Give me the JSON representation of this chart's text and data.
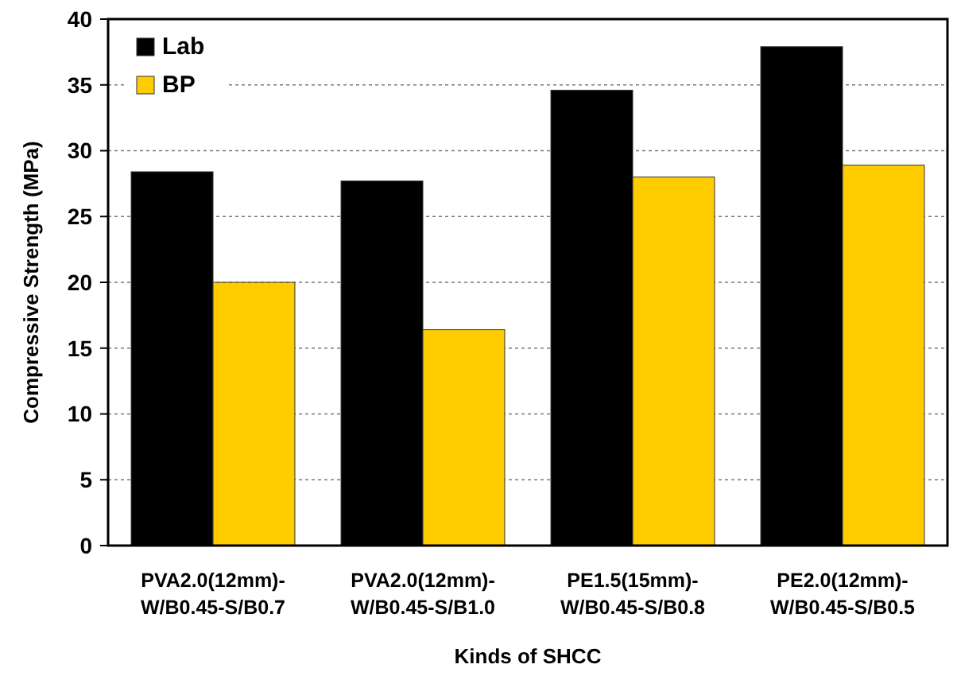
{
  "chart_data": {
    "type": "bar",
    "xlabel": "Kinds of SHCC",
    "ylabel": "Compressive Strength (MPa)",
    "categories": [
      "PVA2.0(12mm)-\nW/B0.45-S/B0.7",
      "PVA2.0(12mm)-\nW/B0.45-S/B1.0",
      "PE1.5(15mm)-\nW/B0.45-S/B0.8",
      "PE2.0(12mm)-\nW/B0.45-S/B0.5"
    ],
    "series": [
      {
        "name": "Lab",
        "color": "#000000",
        "values": [
          28.4,
          27.7,
          34.6,
          37.9
        ]
      },
      {
        "name": "BP",
        "color": "#ffcc00",
        "values": [
          20.0,
          16.4,
          28.0,
          28.9
        ]
      }
    ],
    "ylim": [
      0,
      40
    ],
    "yticks": [
      0,
      5,
      10,
      15,
      20,
      25,
      30,
      35,
      40
    ],
    "grid": "y",
    "legend": "top left"
  }
}
